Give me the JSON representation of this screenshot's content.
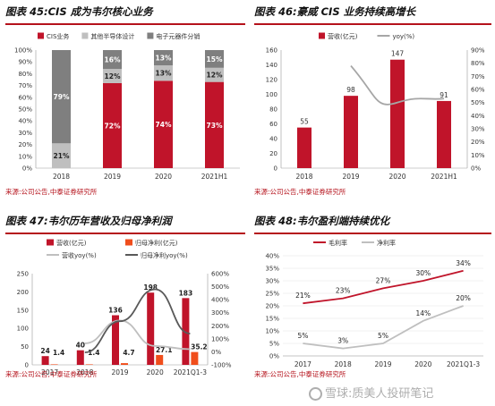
{
  "panels": {
    "p45": {
      "title": "图表 45:CIS 成为韦尔核心业务",
      "source": "来源:公司公告,中泰证券研究所"
    },
    "p46": {
      "title": "图表 46:豪威 CIS 业务持续高增长",
      "source": "来源:公司公告,中泰证券研究所"
    },
    "p47": {
      "title": "图表 47:韦尔历年营收及归母净利润",
      "source": "来源:公司公告,中泰证券研究所"
    },
    "p48": {
      "title": "图表 48:韦尔盈利端持续优化",
      "source": "来源:公司公告,中泰证券研究所"
    }
  },
  "watermark": "雪球:质美人投研笔记",
  "colors": {
    "red": "#c0142a",
    "gray": "#a6a6a6",
    "darkgray": "#7f7f7f",
    "orange": "#f04e1c",
    "lightgray": "#bfbfbf",
    "darkline": "#595959"
  },
  "chart_data": [
    {
      "id": "p45",
      "type": "bar",
      "stacked": true,
      "categories": [
        "2018",
        "2019",
        "2020",
        "2021H1"
      ],
      "yticks": [
        "0%",
        "10%",
        "20%",
        "30%",
        "40%",
        "50%",
        "60%",
        "70%",
        "80%",
        "90%",
        "100%"
      ],
      "ylim": [
        0,
        100
      ],
      "series": [
        {
          "name": "CIS业务",
          "values": [
            0,
            72,
            74,
            73
          ],
          "labels": [
            "",
            "72%",
            "74%",
            "73%"
          ],
          "color": "#c0142a"
        },
        {
          "name": "其他半导体设计",
          "values": [
            21,
            12,
            13,
            12
          ],
          "labels": [
            "21%",
            "12%",
            "13%",
            "12%"
          ],
          "color": "#bfbfbf"
        },
        {
          "name": "电子元器件分销",
          "values": [
            79,
            16,
            13,
            15
          ],
          "labels": [
            "79%",
            "16%",
            "13%",
            "15%"
          ],
          "color": "#7f7f7f"
        }
      ],
      "legend": "top"
    },
    {
      "id": "p46",
      "type": "bar+line",
      "categories": [
        "2018",
        "2019",
        "2020",
        "2021H1"
      ],
      "yticks": [
        "0",
        "20",
        "40",
        "60",
        "80",
        "100",
        "120",
        "140",
        "160"
      ],
      "ylim": [
        0,
        160
      ],
      "y2ticks": [
        "0%",
        "10%",
        "20%",
        "30%",
        "40%",
        "50%",
        "60%",
        "70%",
        "80%",
        "90%"
      ],
      "y2lim": [
        0,
        90
      ],
      "series": [
        {
          "name": "营收(亿元)",
          "values": [
            55,
            98,
            147,
            91
          ],
          "labels": [
            "55",
            "98",
            "147",
            "91"
          ],
          "color": "#c0142a",
          "kind": "bar"
        },
        {
          "name": "yoy(%)",
          "values": [
            null,
            78,
            50,
            53
          ],
          "color": "#a6a6a6",
          "kind": "line",
          "axis": "right"
        }
      ],
      "legend": "top"
    },
    {
      "id": "p47",
      "type": "bar+line",
      "categories": [
        "2017",
        "2018",
        "2019",
        "2020",
        "2021Q1-3"
      ],
      "yticks": [
        "0",
        "50",
        "100",
        "150",
        "200",
        "250"
      ],
      "ylim": [
        0,
        250
      ],
      "y2ticks": [
        "-100%",
        "0%",
        "100%",
        "200%",
        "300%",
        "400%",
        "500%",
        "600%"
      ],
      "y2lim": [
        -100,
        600
      ],
      "series": [
        {
          "name": "营收(亿元)",
          "values": [
            24,
            40,
            136,
            198,
            183
          ],
          "labels": [
            "24",
            "40",
            "136",
            "198",
            "183"
          ],
          "color": "#c0142a",
          "kind": "bar"
        },
        {
          "name": "归母净利(亿元)",
          "values": [
            1.4,
            1.4,
            4.7,
            27.1,
            35.2
          ],
          "labels": [
            "1.4",
            "1.4",
            "4.7",
            "27.1",
            "35.2"
          ],
          "color": "#f04e1c",
          "kind": "bar"
        },
        {
          "name": "营收yoy(%)",
          "values": [
            null,
            65,
            240,
            45,
            20
          ],
          "color": "#bfbfbf",
          "kind": "line",
          "axis": "right"
        },
        {
          "name": "归母净利yoy(%)",
          "values": [
            null,
            -5,
            235,
            480,
            140
          ],
          "color": "#595959",
          "kind": "line",
          "axis": "right"
        }
      ],
      "legend": "top"
    },
    {
      "id": "p48",
      "type": "line",
      "categories": [
        "2017",
        "2018",
        "2019",
        "2020",
        "2021Q1-3"
      ],
      "yticks": [
        "0%",
        "5%",
        "10%",
        "15%",
        "20%",
        "25%",
        "30%",
        "35%",
        "40%"
      ],
      "ylim": [
        0,
        40
      ],
      "series": [
        {
          "name": "毛利率",
          "values": [
            21,
            23,
            27,
            30,
            34
          ],
          "labels": [
            "21%",
            "23%",
            "27%",
            "30%",
            "34%"
          ],
          "color": "#c0142a"
        },
        {
          "name": "净利率",
          "values": [
            5,
            3,
            5,
            14,
            20
          ],
          "labels": [
            "5%",
            "3%",
            "5%",
            "14%",
            "20%"
          ],
          "color": "#bfbfbf"
        }
      ],
      "legend": "top"
    }
  ]
}
